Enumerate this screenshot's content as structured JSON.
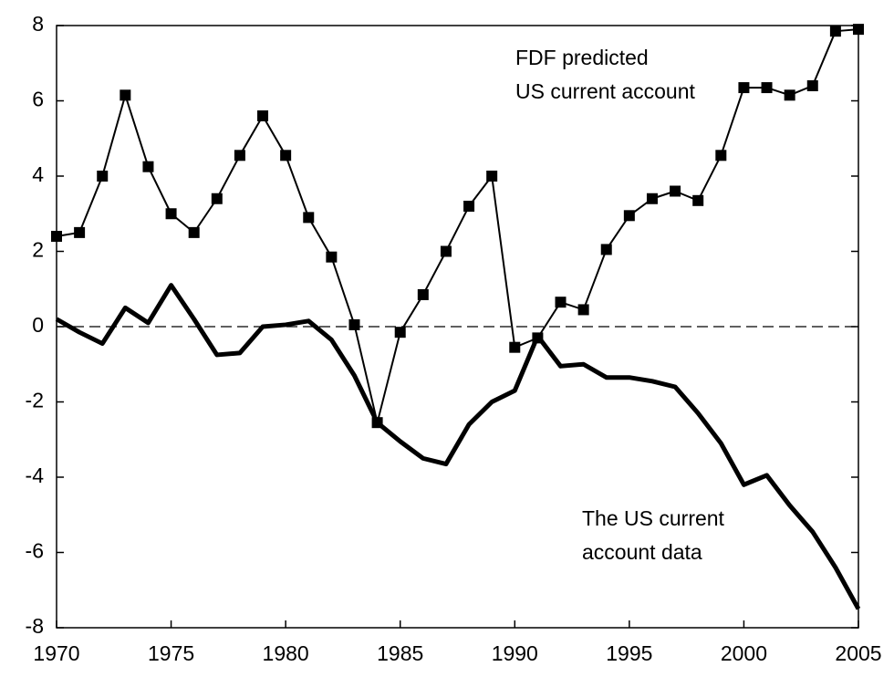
{
  "chart_data": {
    "type": "line",
    "x": [
      1970,
      1971,
      1972,
      1973,
      1974,
      1975,
      1976,
      1977,
      1978,
      1979,
      1980,
      1981,
      1982,
      1983,
      1984,
      1985,
      1986,
      1987,
      1988,
      1989,
      1990,
      1991,
      1992,
      1993,
      1994,
      1995,
      1996,
      1997,
      1998,
      1999,
      2000,
      2001,
      2002,
      2003,
      2004,
      2005
    ],
    "series": [
      {
        "name": "FDF predicted US current account",
        "color": "#000000",
        "marker": "square",
        "values": [
          2.4,
          2.5,
          4.0,
          6.15,
          4.25,
          3.0,
          2.5,
          3.4,
          4.55,
          5.6,
          4.55,
          2.9,
          1.85,
          0.05,
          -2.55,
          -0.15,
          0.85,
          2.0,
          3.2,
          4.0,
          -0.55,
          -0.3,
          0.65,
          0.45,
          2.05,
          2.95,
          3.4,
          3.6,
          3.35,
          4.55,
          6.35,
          6.35,
          6.15,
          6.4,
          7.85,
          7.9
        ]
      },
      {
        "name": "The US current account data",
        "color": "#000000",
        "values": [
          0.2,
          -0.15,
          -0.45,
          0.5,
          0.1,
          1.1,
          0.2,
          -0.75,
          -0.7,
          0.0,
          0.05,
          0.15,
          -0.35,
          -1.3,
          -2.55,
          -3.05,
          -3.5,
          -3.65,
          -2.6,
          -2.0,
          -1.7,
          -0.25,
          -1.05,
          -1.0,
          -1.35,
          -1.35,
          -1.45,
          -1.6,
          -2.3,
          -3.1,
          -4.2,
          -3.95,
          -4.75,
          -5.45,
          -6.4,
          -7.5
        ]
      }
    ],
    "annotations": [
      [
        "FDF predicted",
        "US current account"
      ],
      [
        "The US current",
        "account data"
      ]
    ],
    "xlim": [
      1970,
      2005
    ],
    "xticks": [
      1970,
      1975,
      1980,
      1985,
      1990,
      1995,
      2000,
      2005
    ],
    "ylim": [
      -8,
      8
    ],
    "yticks": [
      -8,
      -6,
      -4,
      -2,
      0,
      2,
      4,
      6,
      8
    ],
    "zero_line": "dashed"
  }
}
